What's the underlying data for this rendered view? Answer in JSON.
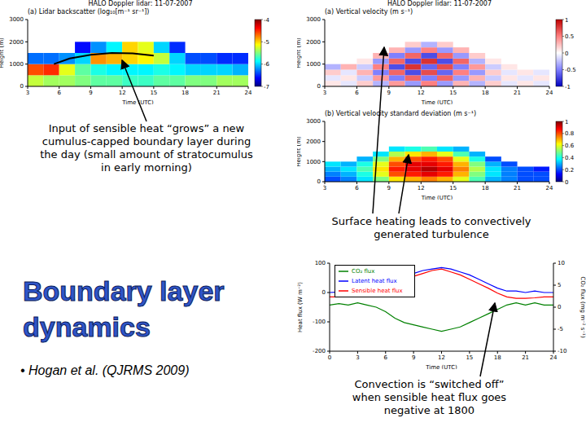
{
  "title": "Boundary layer dynamics",
  "bullet": "• Hogan et al. (QJRMS 2009)",
  "annotations": [
    "Input of sensible heat “grows” a new cumulus-capped boundary layer during the day (small amount of stratocumulus in early morning)",
    "Surface heating leads to convectively generated turbulence",
    "Convection is “switched off” when sensible heat flux goes negative at 1800"
  ],
  "chart_data": [
    {
      "type": "heatmap",
      "title": "HALO Doppler lidar: 11-07-2007",
      "subtitle": "(a) Lidar backscatter (log₁₀[m⁻¹ sr⁻¹])",
      "x_label": "Time (UTC)",
      "y_label": "Height (m)",
      "xlim": [
        3,
        24
      ],
      "xticks": [
        3,
        6,
        9,
        12,
        15,
        18,
        21,
        24
      ],
      "ylim": [
        0,
        3000
      ],
      "yticks": [
        0,
        1000,
        2000,
        3000
      ],
      "x_edges": [
        3,
        4.5,
        6,
        7.5,
        9,
        10.5,
        12,
        13.5,
        15,
        16.5,
        18,
        19.5,
        21,
        22.5,
        24
      ],
      "y_edges": [
        0,
        500,
        1000,
        1500,
        2000,
        2500,
        3000
      ],
      "cells": [
        [
          -5.3,
          -5.4,
          -5.4,
          -5.5,
          -5.6,
          -5.6,
          -5.7,
          -5.7,
          -5.6,
          -5.6,
          -5.5,
          -5.5,
          -5.4,
          -5.4
        ],
        [
          -4.6,
          -4.5,
          -5.2,
          -5.6,
          -5.8,
          -5.9,
          -5.9,
          -5.9,
          -5.8,
          -5.9,
          -6.0,
          -6.0,
          -6.0,
          -6.1
        ],
        [
          -6.3,
          -6.3,
          -6.2,
          -6.0,
          -4.8,
          -4.9,
          -5.0,
          -5.1,
          -5.3,
          -6.0,
          -6.4,
          -6.4,
          -6.5,
          -6.5
        ],
        [
          null,
          null,
          null,
          -6.6,
          -6.2,
          -5.9,
          -5.0,
          -5.2,
          -6.0,
          -6.5,
          null,
          null,
          null,
          null
        ],
        [
          null,
          null,
          null,
          null,
          null,
          null,
          null,
          null,
          null,
          null,
          null,
          null,
          null,
          null
        ],
        [
          null,
          null,
          null,
          null,
          null,
          null,
          null,
          null,
          null,
          null,
          null,
          null,
          null,
          null
        ]
      ],
      "line": {
        "x": [
          5.5,
          7,
          9,
          11,
          13,
          15
        ],
        "y": [
          1000,
          1250,
          1420,
          1500,
          1480,
          1380
        ]
      },
      "colorbar": {
        "range": [
          -7,
          -4
        ],
        "ticks": [
          -7,
          -6,
          -5,
          -4
        ],
        "colors": [
          "#000080",
          "#0000ff",
          "#0080ff",
          "#00ffff",
          "#80ff80",
          "#ffff00",
          "#ff8000",
          "#ff0000",
          "#800000"
        ]
      }
    },
    {
      "type": "heatmap",
      "title": "HALO Doppler lidar: 11-07-2007",
      "subtitle": "(a) Vertical velocity (m s⁻¹)",
      "x_label": "Time (UTC)",
      "y_label": "Height (m)",
      "xlim": [
        3,
        24
      ],
      "xticks": [
        3,
        6,
        9,
        12,
        15,
        18,
        21,
        24
      ],
      "ylim": [
        0,
        3000
      ],
      "yticks": [
        0,
        1000,
        2000,
        3000
      ],
      "x_edges": [
        3,
        4.5,
        6,
        7.5,
        9,
        10.5,
        12,
        13.5,
        15,
        16.5,
        18,
        19.5,
        21,
        22.5,
        24
      ],
      "y_edges": [
        0,
        250,
        500,
        750,
        1000,
        1250,
        1500,
        1750,
        2000
      ],
      "cells": [
        [
          0.1,
          -0.1,
          0.2,
          -0.3,
          0.4,
          -0.4,
          0.5,
          -0.4,
          0.3,
          -0.3,
          0.2,
          -0.1,
          0.1,
          -0.1
        ],
        [
          -0.1,
          0.1,
          -0.2,
          0.4,
          -0.5,
          0.6,
          -0.5,
          0.6,
          -0.4,
          0.3,
          -0.2,
          0.1,
          -0.1,
          0.1
        ],
        [
          0.2,
          -0.1,
          0.3,
          -0.5,
          0.6,
          -0.7,
          0.7,
          -0.6,
          0.5,
          -0.4,
          0.2,
          -0.1,
          0.1,
          -0.1
        ],
        [
          -0.3,
          0.3,
          -0.2,
          0.5,
          -0.7,
          0.8,
          -0.6,
          0.7,
          -0.5,
          0.4,
          -0.2,
          0.1,
          null,
          null
        ],
        [
          null,
          null,
          0.1,
          -0.4,
          0.6,
          -0.7,
          0.8,
          -0.7,
          0.6,
          -0.3,
          0.1,
          null,
          null,
          null
        ],
        [
          null,
          null,
          null,
          0.3,
          -0.5,
          0.6,
          -0.7,
          0.6,
          -0.4,
          0.2,
          null,
          null,
          null,
          null
        ],
        [
          null,
          null,
          null,
          null,
          0.3,
          -0.4,
          0.5,
          -0.4,
          0.3,
          null,
          null,
          null,
          null,
          null
        ],
        [
          null,
          null,
          null,
          null,
          null,
          0.2,
          -0.3,
          0.2,
          null,
          null,
          null,
          null,
          null,
          null
        ]
      ],
      "colorbar": {
        "range": [
          -1,
          1
        ],
        "ticks": [
          -1,
          -0.5,
          0,
          0.5,
          1
        ],
        "colors": [
          "#0000c0",
          "#8080ff",
          "#ffffff",
          "#ff8080",
          "#c00000"
        ]
      }
    },
    {
      "type": "heatmap",
      "subtitle": "(b) Vertical velocity standard deviation (m s⁻¹)",
      "x_label": "Time (UTC)",
      "y_label": "Height (m)",
      "xlim": [
        3,
        24
      ],
      "xticks": [
        3,
        6,
        9,
        12,
        15,
        18,
        21,
        24
      ],
      "ylim": [
        0,
        3000
      ],
      "yticks": [
        0,
        1000,
        2000,
        3000
      ],
      "x_edges": [
        3,
        4.5,
        6,
        7.5,
        9,
        10.5,
        12,
        13.5,
        15,
        16.5,
        18,
        19.5,
        21,
        22.5,
        24
      ],
      "y_edges": [
        0,
        250,
        500,
        750,
        1000,
        1250,
        1500,
        1750
      ],
      "cells": [
        [
          0.2,
          0.25,
          0.35,
          0.5,
          0.65,
          0.7,
          0.75,
          0.7,
          0.6,
          0.45,
          0.3,
          0.25,
          0.2,
          0.2
        ],
        [
          0.25,
          0.3,
          0.4,
          0.6,
          0.8,
          0.85,
          0.9,
          0.85,
          0.7,
          0.5,
          0.35,
          0.25,
          0.2,
          0.2
        ],
        [
          0.3,
          0.35,
          0.45,
          0.65,
          0.85,
          0.9,
          0.95,
          0.9,
          0.75,
          0.55,
          0.35,
          0.25,
          0.2,
          0.15
        ],
        [
          0.35,
          0.3,
          0.4,
          0.6,
          0.8,
          0.9,
          0.9,
          0.85,
          0.7,
          0.5,
          0.3,
          0.2,
          null,
          null
        ],
        [
          null,
          null,
          0.3,
          0.5,
          0.7,
          0.8,
          0.85,
          0.8,
          0.6,
          0.4,
          0.2,
          null,
          null,
          null
        ],
        [
          null,
          null,
          null,
          0.35,
          0.55,
          0.65,
          0.7,
          0.6,
          0.45,
          0.3,
          null,
          null,
          null,
          null
        ],
        [
          null,
          null,
          null,
          null,
          0.35,
          0.4,
          0.45,
          0.35,
          0.3,
          null,
          null,
          null,
          null,
          null
        ]
      ],
      "colorbar": {
        "range": [
          0,
          1
        ],
        "ticks": [
          0,
          0.2,
          0.4,
          0.6,
          0.8,
          1
        ],
        "colors": [
          "#000080",
          "#0000ff",
          "#0080ff",
          "#00ffff",
          "#80ff80",
          "#ffff00",
          "#ff8000",
          "#ff0000",
          "#800000"
        ]
      }
    },
    {
      "type": "line",
      "x_label": "Time (UTC)",
      "y_label": "Heat flux (W m⁻²)",
      "y2_label": "CO₂ flux (mg m⁻² s⁻¹)",
      "x": [
        0,
        1,
        2,
        3,
        4,
        5,
        6,
        7,
        8,
        9,
        10,
        11,
        12,
        13,
        14,
        15,
        16,
        17,
        18,
        19,
        20,
        21,
        22,
        23,
        24
      ],
      "xlim": [
        0,
        24
      ],
      "xticks": [
        0,
        3,
        6,
        9,
        12,
        15,
        18,
        21,
        24
      ],
      "ylim": [
        -200,
        100
      ],
      "yticks": [
        -200,
        -100,
        0,
        100
      ],
      "y2lim": [
        -10,
        10
      ],
      "y2ticks": [
        -10,
        -5,
        0,
        5,
        10
      ],
      "legend": "upper left",
      "series": [
        {
          "name": "Sensible heat flux",
          "color": "#ff0000",
          "values": [
            -15,
            -15,
            -12,
            -10,
            -8,
            0,
            15,
            30,
            45,
            55,
            65,
            75,
            80,
            70,
            60,
            45,
            30,
            15,
            -2,
            -15,
            -20,
            -20,
            -18,
            -15,
            -15
          ]
        },
        {
          "name": "Latent heat flux",
          "color": "#0000ff",
          "values": [
            0,
            2,
            0,
            5,
            5,
            10,
            25,
            40,
            55,
            65,
            75,
            80,
            85,
            80,
            70,
            60,
            45,
            30,
            15,
            5,
            5,
            0,
            5,
            0,
            0
          ]
        },
        {
          "name": "CO₂ flux",
          "color": "#008000",
          "axis": "y2",
          "values": [
            0.5,
            0.8,
            0.5,
            1,
            0.5,
            0,
            -1,
            -2.5,
            -3.5,
            -4,
            -4.5,
            -5,
            -5.5,
            -5,
            -4.5,
            -3.5,
            -2.5,
            -1.5,
            -0.5,
            0.5,
            1,
            0.5,
            1,
            0.5,
            0.5
          ]
        }
      ]
    }
  ]
}
